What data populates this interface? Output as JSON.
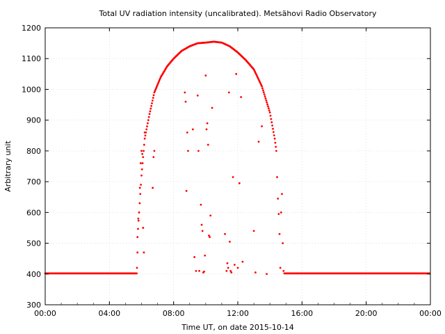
{
  "chart_data": {
    "type": "scatter",
    "title": "Total UV radiation intensity (uncalibrated). Metsähovi Radio Observatory",
    "xlabel": "Time UT, on date 2015-10-14",
    "ylabel": "Arbitrary unit",
    "xlim": [
      0,
      24
    ],
    "ylim": [
      300,
      1200
    ],
    "x_ticks": [
      "00:00",
      "04:00",
      "08:00",
      "12:00",
      "16:00",
      "20:00",
      "00:00"
    ],
    "y_ticks": [
      "300",
      "400",
      "500",
      "600",
      "700",
      "800",
      "900",
      "1000",
      "1100",
      "1200"
    ],
    "grid": true,
    "marker_color": "#ff0000",
    "series": [
      {
        "curve": [
          [
            5.75,
            520
          ],
          [
            5.85,
            600
          ],
          [
            6.0,
            720
          ],
          [
            6.2,
            840
          ],
          [
            6.5,
            920
          ],
          [
            6.8,
            990
          ],
          [
            7.2,
            1040
          ],
          [
            7.6,
            1075
          ],
          [
            8.0,
            1100
          ],
          [
            8.5,
            1125
          ],
          [
            9.0,
            1140
          ],
          [
            9.5,
            1150
          ],
          [
            10.0,
            1152
          ],
          [
            10.5,
            1155
          ],
          [
            11.0,
            1152
          ],
          [
            11.5,
            1140
          ],
          [
            12.0,
            1120
          ],
          [
            12.5,
            1095
          ],
          [
            13.0,
            1065
          ],
          [
            13.5,
            1010
          ],
          [
            14.0,
            925
          ],
          [
            14.3,
            840
          ],
          [
            14.4,
            800
          ]
        ],
        "scattered": [
          [
            5.72,
            420
          ],
          [
            5.75,
            470
          ],
          [
            5.8,
            580
          ],
          [
            5.9,
            680
          ],
          [
            5.95,
            760
          ],
          [
            6.0,
            800
          ],
          [
            6.05,
            790
          ],
          [
            6.1,
            550
          ],
          [
            6.15,
            470
          ],
          [
            6.2,
            860
          ],
          [
            6.7,
            680
          ],
          [
            6.75,
            780
          ],
          [
            6.8,
            800
          ],
          [
            8.7,
            990
          ],
          [
            8.75,
            960
          ],
          [
            8.8,
            670
          ],
          [
            8.85,
            860
          ],
          [
            8.9,
            800
          ],
          [
            9.2,
            870
          ],
          [
            9.3,
            455
          ],
          [
            9.4,
            410
          ],
          [
            9.5,
            980
          ],
          [
            9.55,
            800
          ],
          [
            9.6,
            410
          ],
          [
            9.7,
            625
          ],
          [
            9.75,
            560
          ],
          [
            9.8,
            540
          ],
          [
            9.85,
            405
          ],
          [
            9.9,
            408
          ],
          [
            9.95,
            460
          ],
          [
            10.0,
            1045
          ],
          [
            10.05,
            870
          ],
          [
            10.1,
            890
          ],
          [
            10.15,
            820
          ],
          [
            10.2,
            525
          ],
          [
            10.25,
            520
          ],
          [
            10.3,
            590
          ],
          [
            10.4,
            940
          ],
          [
            11.2,
            530
          ],
          [
            11.3,
            410
          ],
          [
            11.35,
            435
          ],
          [
            11.4,
            420
          ],
          [
            11.45,
            990
          ],
          [
            11.5,
            505
          ],
          [
            11.55,
            410
          ],
          [
            11.6,
            405
          ],
          [
            11.7,
            715
          ],
          [
            11.8,
            430
          ],
          [
            11.9,
            1050
          ],
          [
            12.0,
            420
          ],
          [
            12.1,
            695
          ],
          [
            12.2,
            975
          ],
          [
            12.3,
            440
          ],
          [
            13.0,
            540
          ],
          [
            13.1,
            405
          ],
          [
            13.3,
            830
          ],
          [
            13.5,
            880
          ],
          [
            13.8,
            400
          ],
          [
            14.45,
            715
          ],
          [
            14.5,
            645
          ],
          [
            14.55,
            595
          ],
          [
            14.6,
            530
          ],
          [
            14.65,
            420
          ],
          [
            14.7,
            600
          ],
          [
            14.75,
            660
          ],
          [
            14.8,
            500
          ],
          [
            14.85,
            410
          ]
        ],
        "baseline": {
          "value": 402,
          "x_ranges": [
            [
              0,
              5.7
            ],
            [
              14.9,
              24
            ]
          ]
        }
      }
    ]
  }
}
